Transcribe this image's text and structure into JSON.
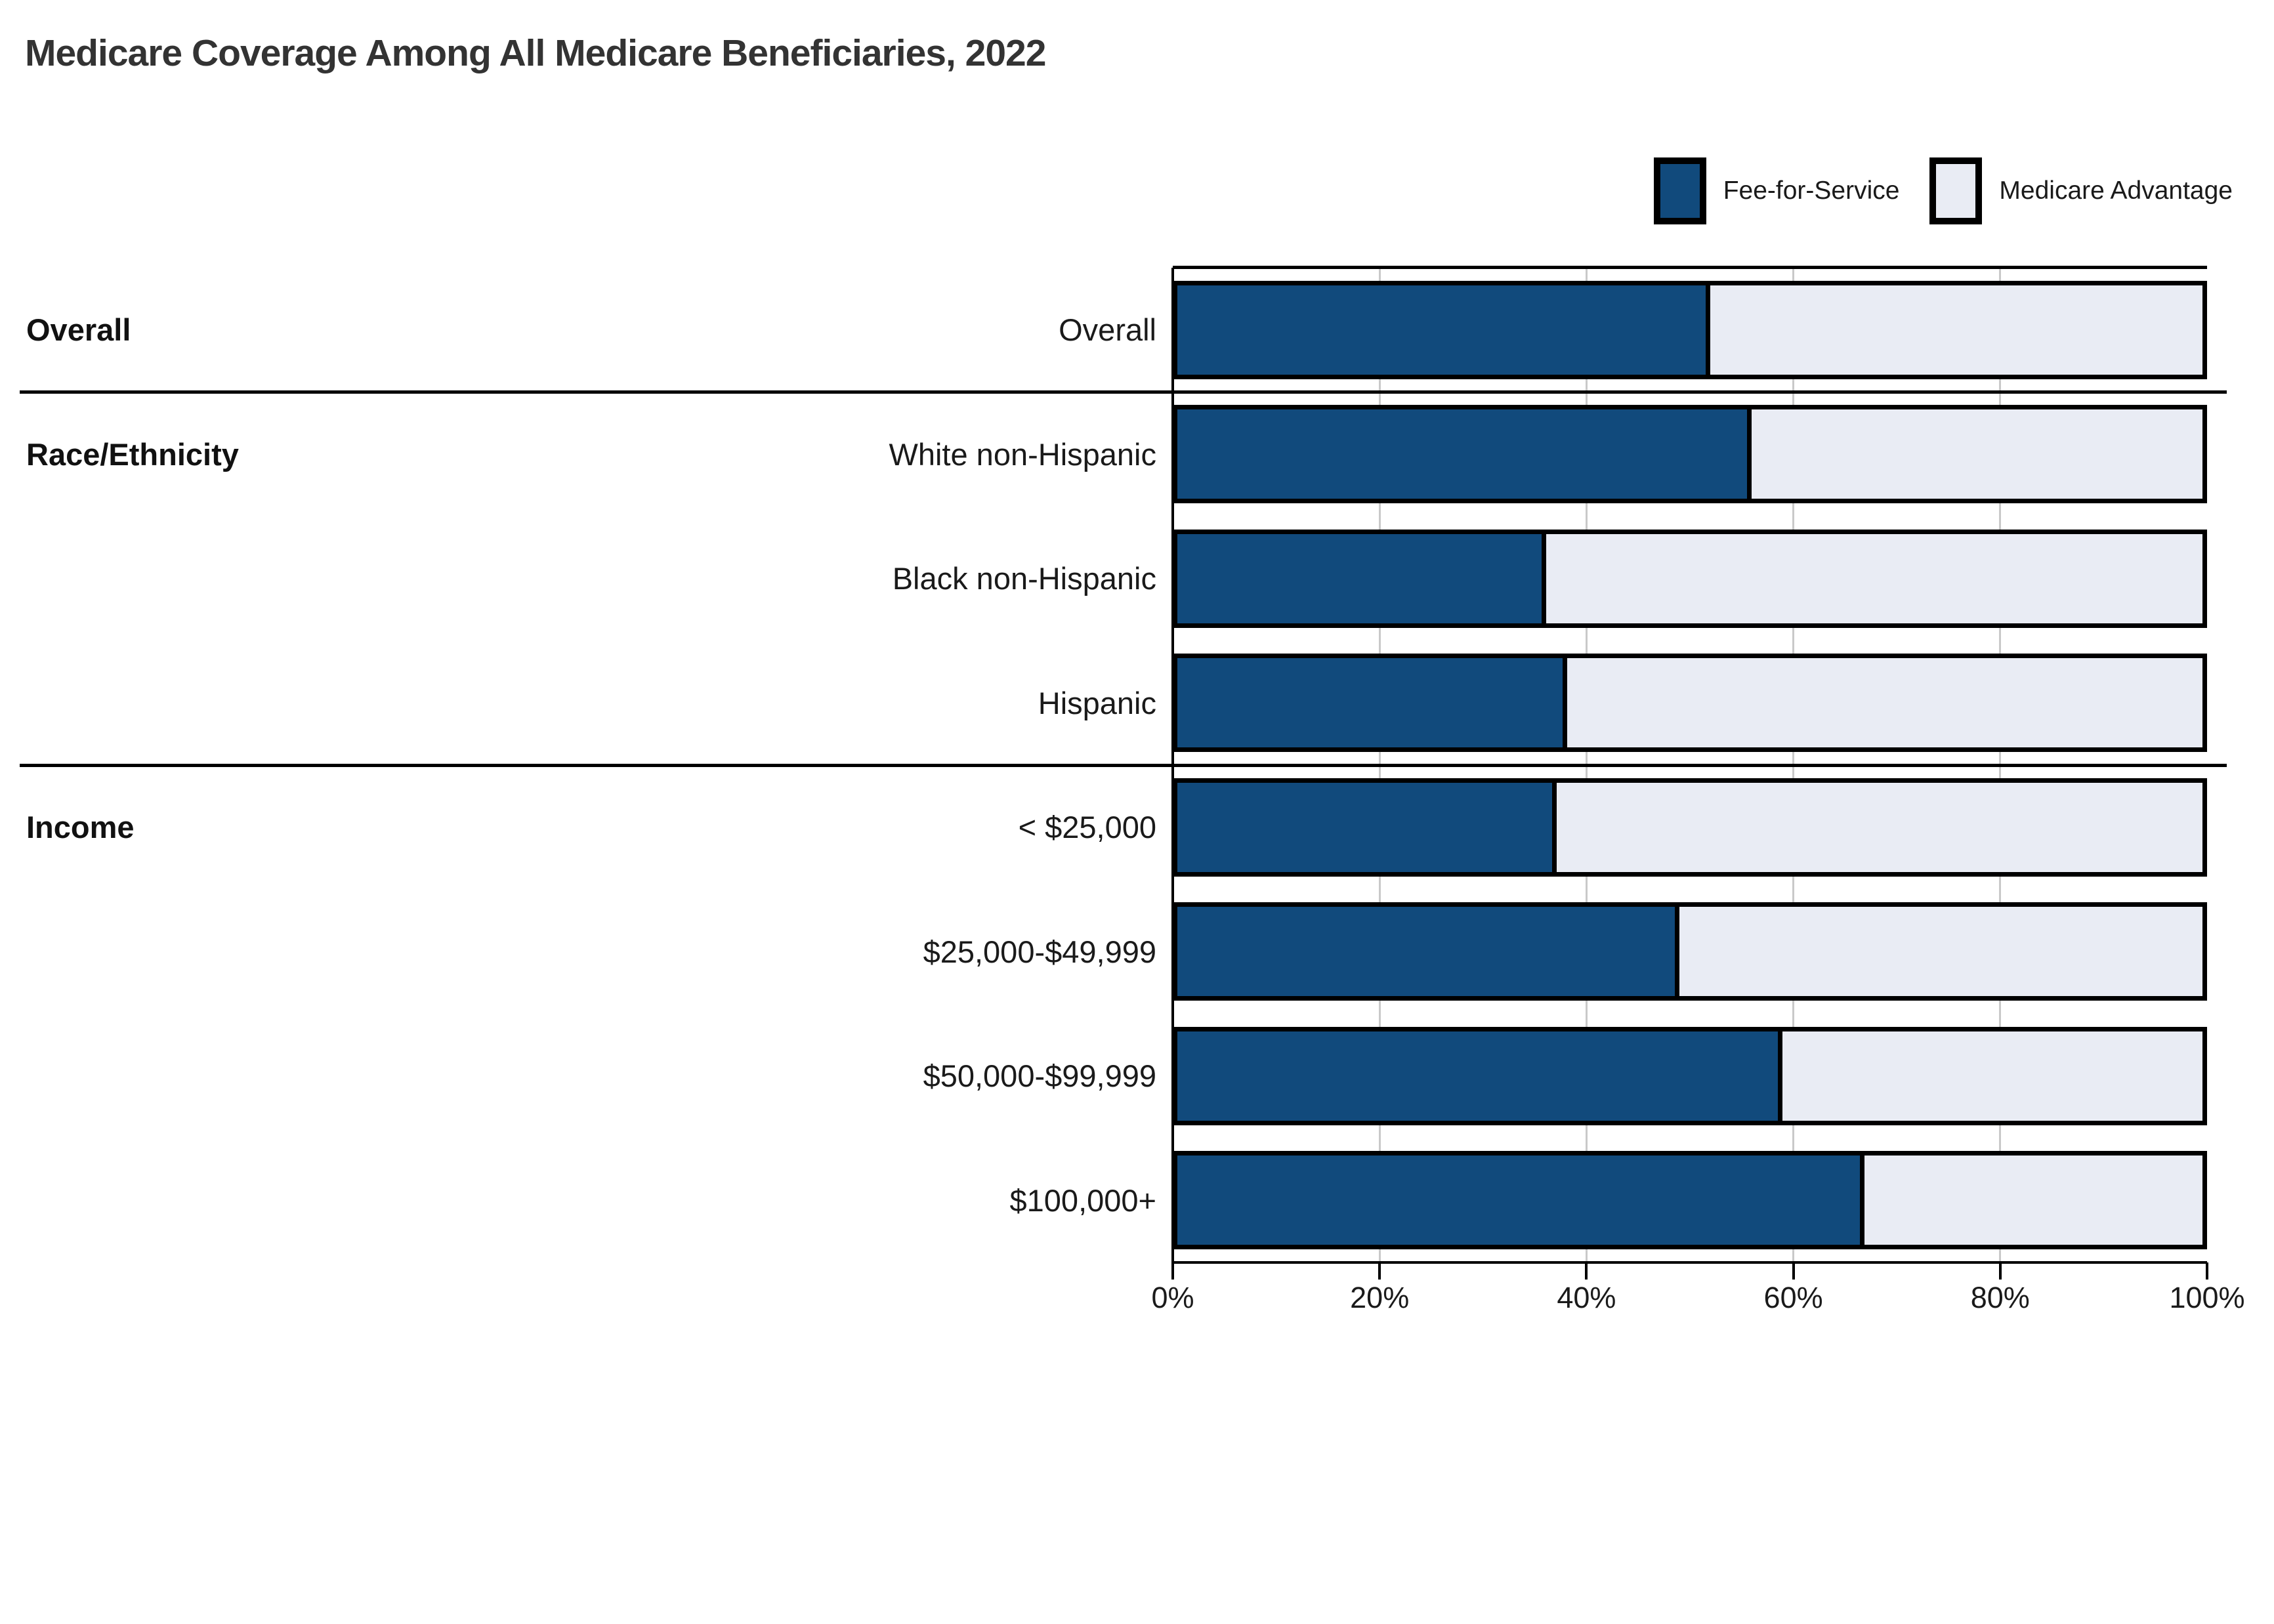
{
  "title": "Medicare Coverage Among All Medicare Beneficiaries, 2022",
  "legend": {
    "items": [
      {
        "label": "Fee-for-Service",
        "color": "#114A7C"
      },
      {
        "label": "Medicare Advantage",
        "color": "#E9ECF4"
      }
    ]
  },
  "colors": {
    "fee_for_service": "#114A7C",
    "medicare_advantage": "#E9ECF4",
    "stroke": "#000000",
    "gridline": "#c9c9c9",
    "title_text": "#333333",
    "label_text": "#1a1a1a"
  },
  "chart_data": {
    "type": "bar",
    "orientation": "horizontal",
    "stacked": true,
    "title": "Medicare Coverage Among All Medicare Beneficiaries, 2022",
    "xlabel": "",
    "ylabel": "",
    "xlim": [
      0,
      100
    ],
    "grid": true,
    "legend_position": "top-right",
    "x_axis_ticks": [
      "0%",
      "20%",
      "40%",
      "60%",
      "80%",
      "100%"
    ],
    "series_names": [
      "Fee-for-Service",
      "Medicare Advantage"
    ],
    "categories": [
      "Overall",
      "White non-Hispanic",
      "Black non-Hispanic",
      "Hispanic",
      "< $25,000",
      "$25,000-$49,999",
      "$50,000-$99,999",
      "$100,000+"
    ],
    "series": [
      {
        "name": "Fee-for-Service",
        "values": [
          52,
          56,
          36,
          38,
          37,
          49,
          59,
          67
        ]
      },
      {
        "name": "Medicare Advantage",
        "values": [
          48,
          44,
          64,
          62,
          63,
          51,
          41,
          33
        ]
      }
    ],
    "groups": [
      {
        "label": "Overall",
        "rows": [
          {
            "label": "Overall",
            "fee_for_service": 52,
            "medicare_advantage": 48
          }
        ]
      },
      {
        "label": "Race/Ethnicity",
        "rows": [
          {
            "label": "White non-Hispanic",
            "fee_for_service": 56,
            "medicare_advantage": 44
          },
          {
            "label": "Black non-Hispanic",
            "fee_for_service": 36,
            "medicare_advantage": 64
          },
          {
            "label": "Hispanic",
            "fee_for_service": 38,
            "medicare_advantage": 62
          }
        ]
      },
      {
        "label": "Income",
        "rows": [
          {
            "label": "< $25,000",
            "fee_for_service": 37,
            "medicare_advantage": 63
          },
          {
            "label": "$25,000-$49,999",
            "fee_for_service": 49,
            "medicare_advantage": 51
          },
          {
            "label": "$50,000-$99,999",
            "fee_for_service": 59,
            "medicare_advantage": 41
          },
          {
            "label": "$100,000+",
            "fee_for_service": 67,
            "medicare_advantage": 33
          }
        ]
      }
    ]
  }
}
